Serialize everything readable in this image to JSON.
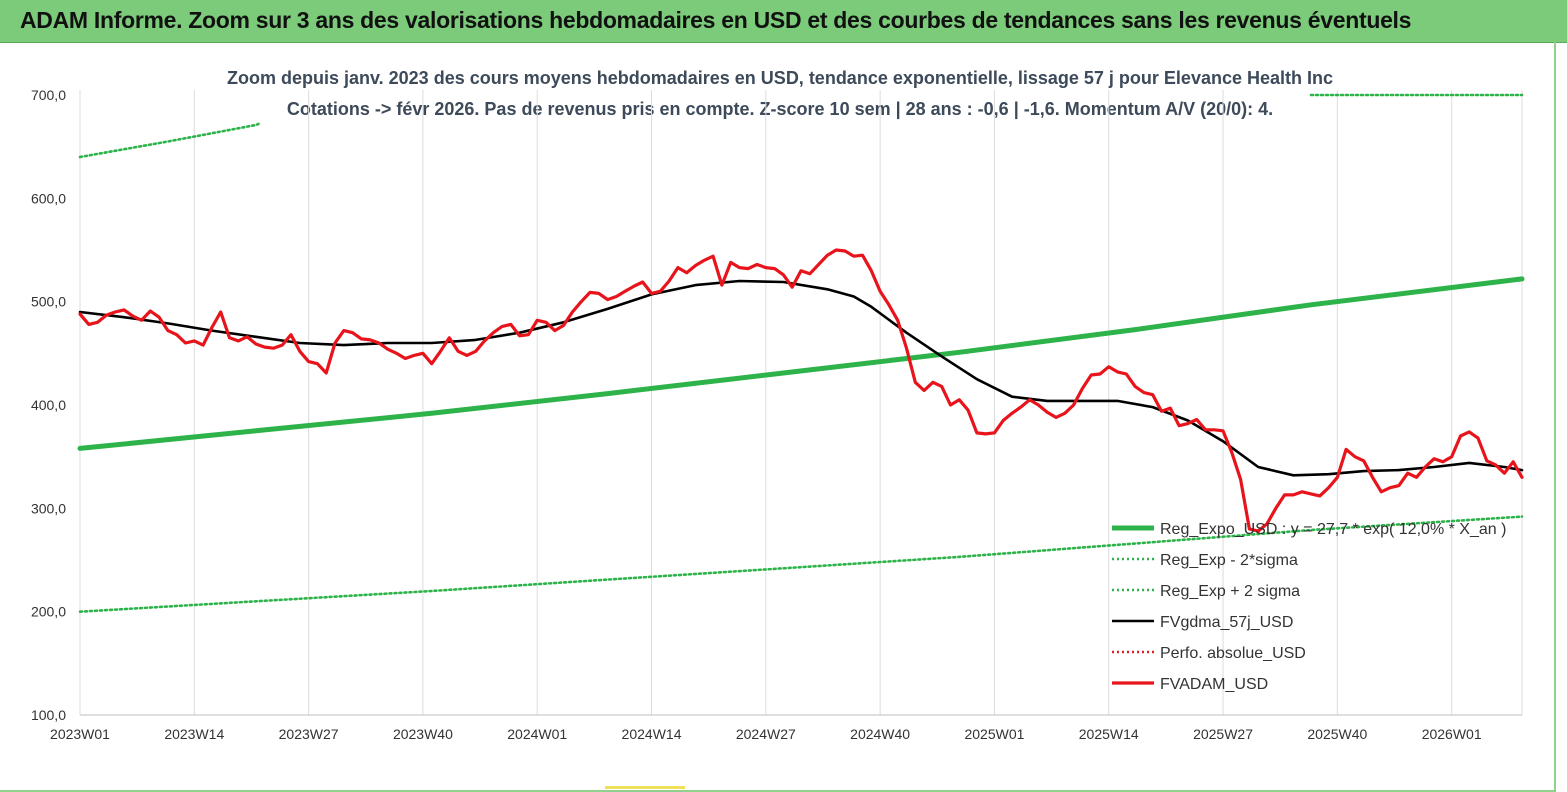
{
  "banner": {
    "title": "ADAM Informe. Zoom sur 3 ans des valorisations hebdomadaires en USD et des courbes de tendances sans les revenus éventuels"
  },
  "chart_data": {
    "type": "line",
    "title": "Zoom depuis janv. 2023 des cours moyens hebdomadaires en USD, tendance exponentielle, lissage 57 j pour Elevance Health Inc",
    "subtitle": "Cotations -> févr 2026.  Pas de revenus pris en compte. Z-score 10 sem | 28 ans : -0,6 | -1,6. Momentum A/V (20/0): 4.",
    "xlabel": "",
    "ylabel": "",
    "ylim": [
      100,
      700
    ],
    "y_ticks": [
      "100,0",
      "200,0",
      "300,0",
      "400,0",
      "500,0",
      "600,0",
      "700,0"
    ],
    "x_range": [
      0,
      164
    ],
    "x_ticks": [
      {
        "label": "2023W01",
        "x": 0
      },
      {
        "label": "2023W14",
        "x": 13
      },
      {
        "label": "2023W27",
        "x": 26
      },
      {
        "label": "2023W40",
        "x": 39
      },
      {
        "label": "2024W01",
        "x": 52
      },
      {
        "label": "2024W14",
        "x": 65
      },
      {
        "label": "2024W27",
        "x": 78
      },
      {
        "label": "2024W40",
        "x": 91
      },
      {
        "label": "2025W01",
        "x": 104
      },
      {
        "label": "2025W14",
        "x": 117
      },
      {
        "label": "2025W27",
        "x": 130
      },
      {
        "label": "2025W40",
        "x": 143
      },
      {
        "label": "2026W01",
        "x": 156
      }
    ],
    "grid": {
      "vertical": true,
      "horizontal": false
    },
    "legend_position": "bottom-right",
    "series": [
      {
        "name": "Reg_Expo_USD : y = 27,7 * exp( 12,0% * X_an )",
        "style": "solid-thick",
        "color": "#2db34a",
        "points": [
          [
            0,
            358
          ],
          [
            20,
            375
          ],
          [
            40,
            392
          ],
          [
            60,
            411
          ],
          [
            80,
            431
          ],
          [
            100,
            451
          ],
          [
            120,
            473
          ],
          [
            140,
            497
          ],
          [
            164,
            522
          ]
        ]
      },
      {
        "name": "Reg_Exp - 2*sigma",
        "style": "dotted",
        "color": "#2db34a",
        "points": [
          [
            0,
            200
          ],
          [
            20,
            210
          ],
          [
            40,
            220
          ],
          [
            60,
            231
          ],
          [
            80,
            242
          ],
          [
            100,
            253
          ],
          [
            120,
            266
          ],
          [
            140,
            279
          ],
          [
            164,
            292
          ]
        ]
      },
      {
        "name": "Reg_Exp + 2 sigma",
        "style": "dotted",
        "color": "#2db34a",
        "points": [
          [
            0,
            640
          ],
          [
            10,
            655
          ],
          [
            20,
            671
          ],
          [
            20.3,
            672
          ]
        ],
        "points_upper": [
          [
            140,
            700
          ],
          [
            164,
            700
          ]
        ]
      },
      {
        "name": "FVgdma_57j_USD",
        "style": "solid",
        "color": "#000000",
        "points": [
          [
            0,
            490
          ],
          [
            5,
            485
          ],
          [
            10,
            479
          ],
          [
            15,
            472
          ],
          [
            20,
            466
          ],
          [
            25,
            460
          ],
          [
            30,
            458
          ],
          [
            35,
            460
          ],
          [
            40,
            460
          ],
          [
            45,
            463
          ],
          [
            50,
            470
          ],
          [
            55,
            480
          ],
          [
            60,
            493
          ],
          [
            65,
            507
          ],
          [
            70,
            516
          ],
          [
            75,
            520
          ],
          [
            80,
            519
          ],
          [
            85,
            512
          ],
          [
            88,
            505
          ],
          [
            90,
            495
          ],
          [
            94,
            470
          ],
          [
            98,
            447
          ],
          [
            102,
            425
          ],
          [
            106,
            408
          ],
          [
            110,
            404
          ],
          [
            114,
            404
          ],
          [
            118,
            404
          ],
          [
            122,
            398
          ],
          [
            126,
            385
          ],
          [
            130,
            365
          ],
          [
            134,
            340
          ],
          [
            138,
            332
          ],
          [
            142,
            333
          ],
          [
            146,
            336
          ],
          [
            150,
            337
          ],
          [
            154,
            340
          ],
          [
            158,
            344
          ],
          [
            162,
            340
          ],
          [
            164,
            337
          ]
        ]
      },
      {
        "name": "Perfo. absolue_USD",
        "style": "dotted",
        "color": "#e02020",
        "points": []
      },
      {
        "name": "FVADAM_USD",
        "style": "solid",
        "color": "#e8141b",
        "points": [
          [
            0,
            488
          ],
          [
            1,
            478
          ],
          [
            2,
            480
          ],
          [
            3,
            487
          ],
          [
            4,
            490
          ],
          [
            5,
            492
          ],
          [
            6,
            486
          ],
          [
            7,
            482
          ],
          [
            8,
            491
          ],
          [
            9,
            485
          ],
          [
            10,
            472
          ],
          [
            11,
            468
          ],
          [
            12,
            460
          ],
          [
            13,
            462
          ],
          [
            14,
            458
          ],
          [
            15,
            475
          ],
          [
            16,
            490
          ],
          [
            17,
            465
          ],
          [
            18,
            462
          ],
          [
            19,
            466
          ],
          [
            20,
            459
          ],
          [
            21,
            456
          ],
          [
            22,
            455
          ],
          [
            23,
            458
          ],
          [
            24,
            468
          ],
          [
            25,
            452
          ],
          [
            26,
            442
          ],
          [
            27,
            440
          ],
          [
            28,
            431
          ],
          [
            29,
            460
          ],
          [
            30,
            472
          ],
          [
            31,
            470
          ],
          [
            32,
            464
          ],
          [
            33,
            463
          ],
          [
            34,
            460
          ],
          [
            35,
            454
          ],
          [
            36,
            450
          ],
          [
            37,
            445
          ],
          [
            38,
            448
          ],
          [
            39,
            450
          ],
          [
            40,
            440
          ],
          [
            41,
            452
          ],
          [
            42,
            465
          ],
          [
            43,
            452
          ],
          [
            44,
            448
          ],
          [
            45,
            452
          ],
          [
            46,
            462
          ],
          [
            47,
            470
          ],
          [
            48,
            476
          ],
          [
            49,
            478
          ],
          [
            50,
            467
          ],
          [
            51,
            468
          ],
          [
            52,
            482
          ],
          [
            53,
            480
          ],
          [
            54,
            472
          ],
          [
            55,
            477
          ],
          [
            56,
            490
          ],
          [
            57,
            500
          ],
          [
            58,
            509
          ],
          [
            59,
            508
          ],
          [
            60,
            502
          ],
          [
            61,
            505
          ],
          [
            62,
            510
          ],
          [
            63,
            515
          ],
          [
            64,
            519
          ],
          [
            65,
            508
          ],
          [
            66,
            510
          ],
          [
            67,
            520
          ],
          [
            68,
            533
          ],
          [
            69,
            528
          ],
          [
            70,
            535
          ],
          [
            71,
            540
          ],
          [
            72,
            544
          ],
          [
            73,
            516
          ],
          [
            74,
            538
          ],
          [
            75,
            533
          ],
          [
            76,
            532
          ],
          [
            77,
            536
          ],
          [
            78,
            533
          ],
          [
            79,
            532
          ],
          [
            80,
            526
          ],
          [
            81,
            514
          ],
          [
            82,
            530
          ],
          [
            83,
            527
          ],
          [
            84,
            536
          ],
          [
            85,
            545
          ],
          [
            86,
            550
          ],
          [
            87,
            549
          ],
          [
            88,
            544
          ],
          [
            89,
            545
          ],
          [
            90,
            530
          ],
          [
            91,
            510
          ],
          [
            92,
            497
          ],
          [
            93,
            482
          ],
          [
            94,
            455
          ],
          [
            95,
            422
          ],
          [
            96,
            414
          ],
          [
            97,
            422
          ],
          [
            98,
            418
          ],
          [
            99,
            400
          ],
          [
            100,
            405
          ],
          [
            101,
            395
          ],
          [
            102,
            373
          ],
          [
            103,
            372
          ],
          [
            104,
            373
          ],
          [
            105,
            385
          ],
          [
            106,
            392
          ],
          [
            107,
            398
          ],
          [
            108,
            405
          ],
          [
            109,
            400
          ],
          [
            110,
            393
          ],
          [
            111,
            388
          ],
          [
            112,
            392
          ],
          [
            113,
            400
          ],
          [
            114,
            416
          ],
          [
            115,
            429
          ],
          [
            116,
            430
          ],
          [
            117,
            437
          ],
          [
            118,
            432
          ],
          [
            119,
            430
          ],
          [
            120,
            418
          ],
          [
            121,
            412
          ],
          [
            122,
            410
          ],
          [
            123,
            394
          ],
          [
            124,
            397
          ],
          [
            125,
            380
          ],
          [
            126,
            382
          ],
          [
            127,
            386
          ],
          [
            128,
            376
          ],
          [
            129,
            376
          ],
          [
            130,
            375
          ],
          [
            131,
            354
          ],
          [
            132,
            328
          ],
          [
            133,
            280
          ],
          [
            134,
            278
          ],
          [
            135,
            285
          ],
          [
            136,
            300
          ],
          [
            137,
            313
          ],
          [
            138,
            313
          ],
          [
            139,
            316
          ],
          [
            140,
            314
          ],
          [
            141,
            312
          ],
          [
            142,
            320
          ],
          [
            143,
            330
          ],
          [
            144,
            357
          ],
          [
            145,
            350
          ],
          [
            146,
            346
          ],
          [
            147,
            330
          ],
          [
            148,
            316
          ],
          [
            149,
            320
          ],
          [
            150,
            322
          ],
          [
            151,
            334
          ],
          [
            152,
            330
          ],
          [
            153,
            340
          ],
          [
            154,
            348
          ],
          [
            155,
            345
          ],
          [
            156,
            350
          ],
          [
            157,
            370
          ],
          [
            158,
            374
          ],
          [
            159,
            368
          ],
          [
            160,
            346
          ],
          [
            161,
            342
          ],
          [
            162,
            334
          ],
          [
            163,
            345
          ],
          [
            164,
            330
          ]
        ]
      }
    ]
  }
}
